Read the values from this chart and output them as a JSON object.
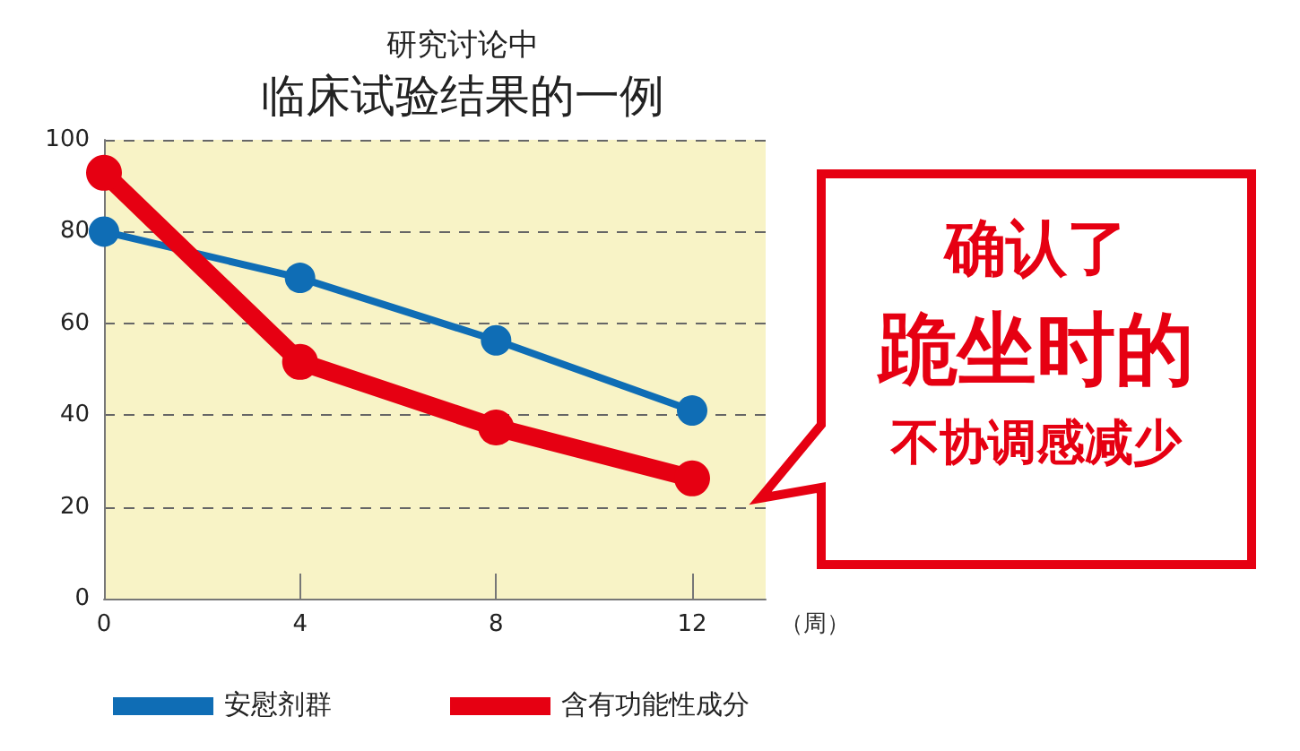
{
  "chart_data": {
    "type": "line",
    "title": "临床试验结果的一例",
    "subtitle": "研究讨论中",
    "xlabel": "（周）",
    "x": [
      0,
      4,
      8,
      12
    ],
    "series": [
      {
        "name": "安慰剂群",
        "color": "#0f6db5",
        "values": [
          80.0,
          69.9,
          56.3,
          41.0
        ]
      },
      {
        "name": "含有功能性成分",
        "color": "#e60012",
        "values": [
          92.8,
          51.6,
          37.3,
          26.2
        ]
      }
    ],
    "xlim": [
      0,
      13.5
    ],
    "xticks": [
      0,
      4,
      8,
      12
    ],
    "ylim": [
      0,
      100
    ],
    "yticks": [
      0,
      20,
      40,
      60,
      80,
      100
    ],
    "grid": "y",
    "legend": "bottom",
    "marker": "circle",
    "line_style": "solid",
    "annotations": [
      "确认了",
      "跪坐时的",
      "不协调感减少"
    ]
  }
}
